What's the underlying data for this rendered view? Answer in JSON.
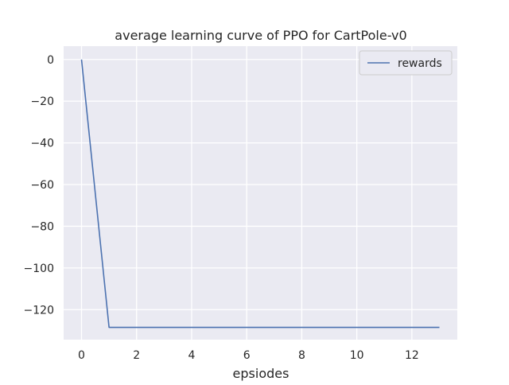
{
  "chart_data": {
    "type": "line",
    "title": "average learning curve of PPO for CartPole-v0",
    "xlabel": "epsiodes",
    "ylabel": "",
    "xlim": [
      -0.65,
      13.65
    ],
    "ylim": [
      -134.4,
      6.4
    ],
    "xticks": [
      0,
      2,
      4,
      6,
      8,
      10,
      12
    ],
    "yticks": [
      0,
      -20,
      -40,
      -60,
      -80,
      -100,
      -120
    ],
    "xtick_labels": [
      "0",
      "2",
      "4",
      "6",
      "8",
      "10",
      "12"
    ],
    "ytick_labels": [
      "0",
      "−20",
      "−40",
      "−60",
      "−80",
      "−100",
      "−120"
    ],
    "grid": true,
    "legend_position": "top-right",
    "series": [
      {
        "name": "rewards",
        "color": "#4c72b0",
        "x": [
          0,
          1,
          2,
          3,
          4,
          5,
          6,
          7,
          8,
          9,
          10,
          13
        ],
        "y": [
          0,
          -128.5,
          -128.5,
          -128.5,
          -128.5,
          -128.5,
          -128.5,
          -128.5,
          -128.5,
          -128.5,
          -128.5,
          -128.5
        ]
      }
    ],
    "colors": {
      "plot_background": "#eaeaf2",
      "grid": "#ffffff",
      "text": "#262626"
    }
  }
}
